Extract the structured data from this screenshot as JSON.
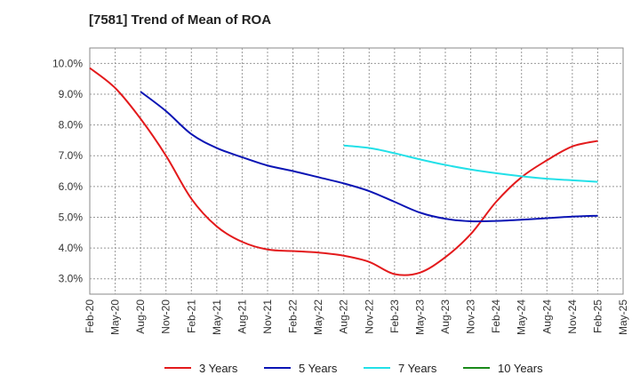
{
  "chart_data": {
    "type": "line",
    "title": "[7581]  Trend of Mean of ROA",
    "xlabel": "",
    "ylabel": "",
    "ylim": [
      2.5,
      10.5
    ],
    "yticks": [
      3.0,
      4.0,
      5.0,
      6.0,
      7.0,
      8.0,
      9.0,
      10.0
    ],
    "ytick_labels": [
      "3.0%",
      "4.0%",
      "5.0%",
      "6.0%",
      "7.0%",
      "8.0%",
      "9.0%",
      "10.0%"
    ],
    "categories": [
      "Feb-20",
      "May-20",
      "Aug-20",
      "Nov-20",
      "Feb-21",
      "May-21",
      "Aug-21",
      "Nov-21",
      "Feb-22",
      "May-22",
      "Aug-22",
      "Nov-22",
      "Feb-23",
      "May-23",
      "Aug-23",
      "Nov-23",
      "Feb-24",
      "May-24",
      "Aug-24",
      "Nov-24",
      "Feb-25",
      "May-25"
    ],
    "series": [
      {
        "name": "3 Years",
        "color": "#e31a1c",
        "values": [
          9.85,
          9.2,
          8.2,
          7.0,
          5.6,
          4.7,
          4.2,
          3.95,
          3.9,
          3.85,
          3.75,
          3.55,
          3.15,
          3.2,
          3.7,
          4.45,
          5.5,
          6.3,
          6.85,
          7.3,
          7.48,
          null
        ]
      },
      {
        "name": "5 Years",
        "color": "#0a14b4",
        "values": [
          null,
          null,
          9.08,
          8.45,
          7.7,
          7.25,
          6.95,
          6.68,
          6.5,
          6.3,
          6.1,
          5.85,
          5.5,
          5.15,
          4.95,
          4.87,
          4.88,
          4.92,
          4.97,
          5.02,
          5.05,
          null
        ]
      },
      {
        "name": "7 Years",
        "color": "#22e0e8",
        "values": [
          null,
          null,
          null,
          null,
          null,
          null,
          null,
          null,
          null,
          null,
          7.33,
          7.25,
          7.08,
          6.88,
          6.7,
          6.55,
          6.43,
          6.33,
          6.25,
          6.2,
          6.15,
          null
        ]
      },
      {
        "name": "10 Years",
        "color": "#1a8a1a",
        "values": [
          null,
          null,
          null,
          null,
          null,
          null,
          null,
          null,
          null,
          null,
          null,
          null,
          null,
          null,
          null,
          null,
          null,
          null,
          null,
          null,
          null,
          null
        ]
      }
    ],
    "grid": true,
    "legend": "bottom"
  }
}
